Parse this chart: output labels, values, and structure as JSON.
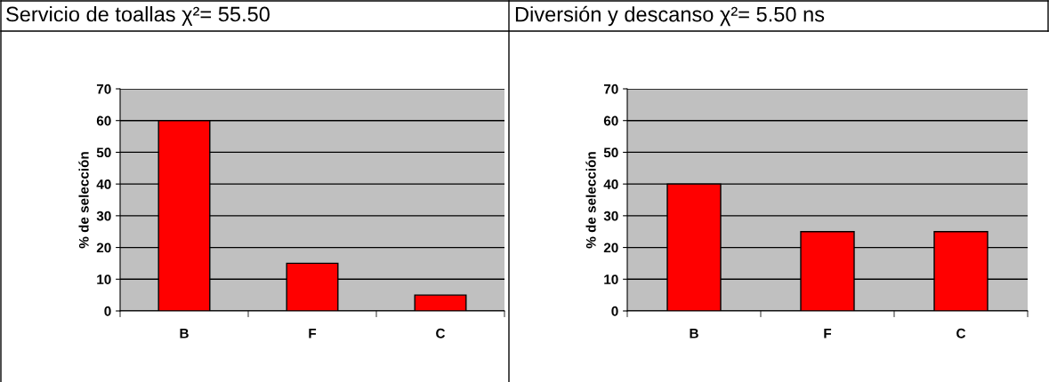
{
  "chart_data": [
    {
      "type": "bar",
      "title": "Servicio de toallas χ²= 55.50",
      "ylabel": "% de selección",
      "categories": [
        "B",
        "F",
        "C"
      ],
      "values": [
        60,
        15,
        5
      ],
      "color": "#ff0000",
      "ylim": [
        0,
        70
      ],
      "yticks": [
        0,
        10,
        20,
        30,
        40,
        50,
        60,
        70
      ],
      "grid": "y"
    },
    {
      "type": "bar",
      "title": "Diversión y descanso χ²= 5.50 ns",
      "ylabel": "% de selección",
      "categories": [
        "B",
        "F",
        "C"
      ],
      "values": [
        40,
        25,
        25
      ],
      "color": "#ff0000",
      "ylim": [
        0,
        70
      ],
      "yticks": [
        0,
        10,
        20,
        30,
        40,
        50,
        60,
        70
      ],
      "grid": "y"
    }
  ]
}
